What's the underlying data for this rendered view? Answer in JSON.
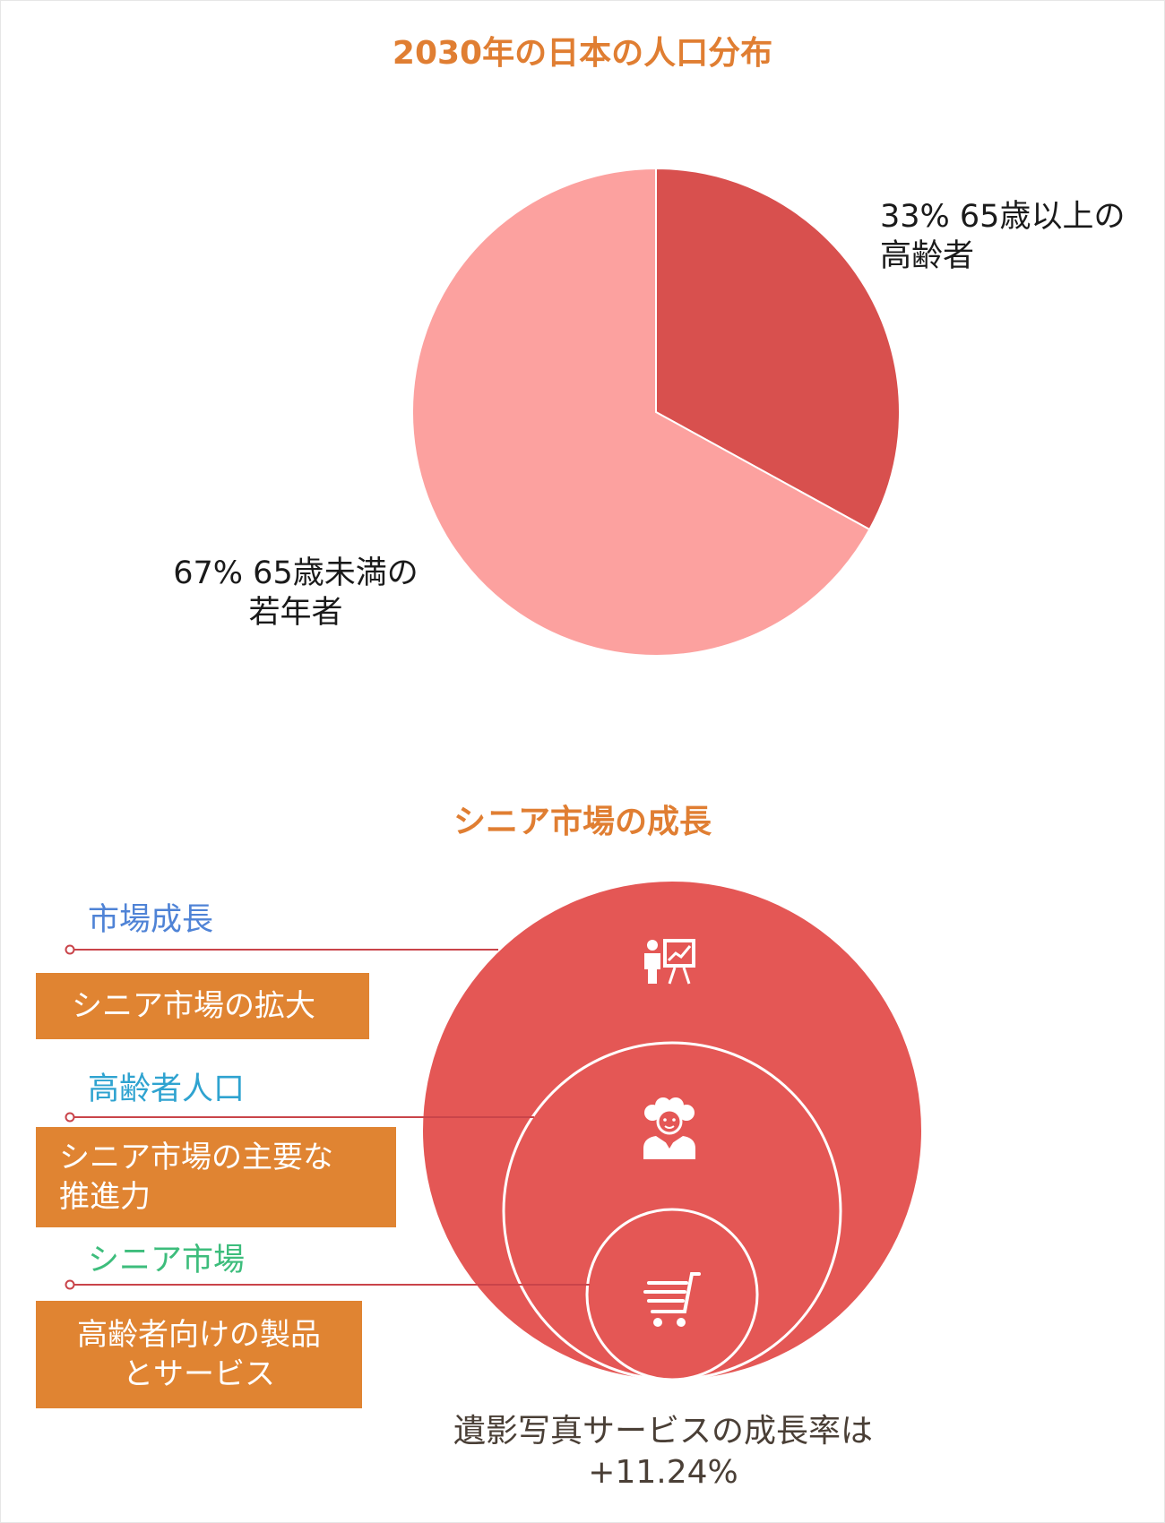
{
  "colors": {
    "title": "#E07E32",
    "pie_large": "#FCA19F",
    "pie_small": "#D8504E",
    "circle": "#E45755",
    "box": "#E08432",
    "market_title": "#4F83D6",
    "population_title": "#2FA3D0",
    "senior_title": "#3DBD7C",
    "leader_line": "#C9444A",
    "footer_text": "#4a3f36"
  },
  "chart_data": [
    {
      "type": "pie",
      "title": "2030年の日本の人口分布",
      "slices": [
        {
          "label": "33% 65歳以上の\n高齢者",
          "value": 33
        },
        {
          "label": "67% 65歳未満の\n若年者",
          "value": 67
        }
      ]
    }
  ],
  "section2": {
    "title": "シニア市場の成長",
    "categories": [
      {
        "title": "市場成長",
        "text": "シニア市場の拡大",
        "icon": "presentation-icon"
      },
      {
        "title": "高齢者人口",
        "text": "シニア市場の主要な\n推進力",
        "icon": "elderly-person-icon"
      },
      {
        "title": "シニア市場",
        "text": "高齢者向けの製品\nとサービス",
        "icon": "shopping-cart-icon"
      }
    ],
    "footer": "遺影写真サービスの成長率は\n+11.24%"
  }
}
